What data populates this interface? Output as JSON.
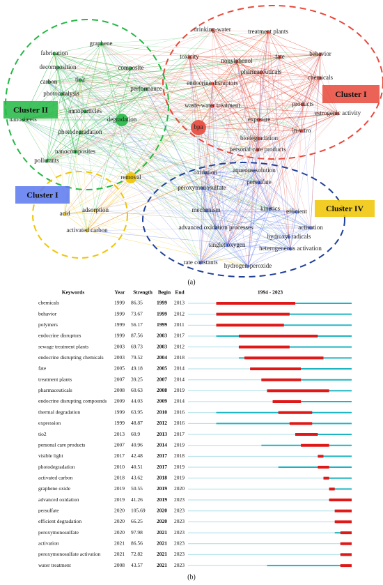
{
  "network": {
    "clusters": [
      {
        "label": "Cluster II",
        "color": "#22b844",
        "nodes": [
          "graphene",
          "fabrication",
          "decomposition",
          "composite",
          "carbon",
          "tio2",
          "performance",
          "photocatalysis",
          "nanoparticles",
          "nanosheets",
          "degradation",
          "photodegradation",
          "nanocomposites",
          "pollutants"
        ]
      },
      {
        "label": "Cluster I",
        "color": "#e8473a",
        "nodes": [
          "drinking-water",
          "treatment plants",
          "toxicity",
          "nonylphenol",
          "fate",
          "behavior",
          "pharmaceuticals",
          "chemicals",
          "endocrine disruptors",
          "waste-water treatment",
          "products",
          "estrogenic activity",
          "bpa",
          "exposure",
          "in-vitro",
          "biodegradation",
          "personal care products"
        ]
      },
      {
        "label": "Cluster I",
        "color": "#5b78ee",
        "nodes": [
          "oxidation",
          "aqueous-solution",
          "peroxymonosulfate",
          "persulfate",
          "kinetics",
          "efficient",
          "mechanism",
          "activation",
          "advanced oxidation processes",
          "hydroxyl radicals",
          "singlet oxygen",
          "heterogeneous activation",
          "rate constants",
          "hydrogen-peroxide"
        ]
      },
      {
        "label": "Cluster IV",
        "color": "#f0c400",
        "nodes": [
          "removal",
          "adsorption",
          "acid",
          "activated carbon"
        ]
      }
    ],
    "caption": "(a)"
  },
  "table": {
    "headers": [
      "Keywords",
      "Year",
      "Strength",
      "Begin",
      "End"
    ],
    "timeline": {
      "label": "1994 - 2023",
      "start": 1994,
      "end": 2023
    },
    "rows": [
      {
        "keyword": "chemicals",
        "year": 1999,
        "strength": 86.35,
        "begin": 1999,
        "end": 2013
      },
      {
        "keyword": "behavior",
        "year": 1999,
        "strength": 73.67,
        "begin": 1999,
        "end": 2012
      },
      {
        "keyword": "polymers",
        "year": 1999,
        "strength": 56.17,
        "begin": 1999,
        "end": 2011
      },
      {
        "keyword": "endocrine disruptors",
        "year": 1999,
        "strength": 87.56,
        "begin": 2003,
        "end": 2017
      },
      {
        "keyword": "sewage treatment plants",
        "year": 2003,
        "strength": 69.73,
        "begin": 2003,
        "end": 2012
      },
      {
        "keyword": "endocrine disrupting chemicals",
        "year": 2003,
        "strength": 79.52,
        "begin": 2004,
        "end": 2018
      },
      {
        "keyword": "fate",
        "year": 2005,
        "strength": 49.18,
        "begin": 2005,
        "end": 2014
      },
      {
        "keyword": "treatment plants",
        "year": 2007,
        "strength": 39.25,
        "begin": 2007,
        "end": 2014
      },
      {
        "keyword": "pharmaceuticals",
        "year": 2008,
        "strength": 60.63,
        "begin": 2008,
        "end": 2019
      },
      {
        "keyword": "endocrine disrupting compounds",
        "year": 2009,
        "strength": 44.03,
        "begin": 2009,
        "end": 2014
      },
      {
        "keyword": "thermal degradation",
        "year": 1999,
        "strength": 63.95,
        "begin": 2010,
        "end": 2016
      },
      {
        "keyword": "expression",
        "year": 1999,
        "strength": 48.87,
        "begin": 2012,
        "end": 2016
      },
      {
        "keyword": "tio2",
        "year": 2013,
        "strength": 60.9,
        "begin": 2013,
        "end": 2017
      },
      {
        "keyword": "personal care products",
        "year": 2007,
        "strength": 40.96,
        "begin": 2014,
        "end": 2019
      },
      {
        "keyword": "visible light",
        "year": 2017,
        "strength": 42.48,
        "begin": 2017,
        "end": 2018
      },
      {
        "keyword": "photodegradation",
        "year": 2010,
        "strength": 40.51,
        "begin": 2017,
        "end": 2019
      },
      {
        "keyword": "activated carbon",
        "year": 2018,
        "strength": 43.62,
        "begin": 2018,
        "end": 2019
      },
      {
        "keyword": "graphene oxide",
        "year": 2019,
        "strength": 50.55,
        "begin": 2019,
        "end": 2020
      },
      {
        "keyword": "advanced oxidation",
        "year": 2019,
        "strength": 41.26,
        "begin": 2019,
        "end": 2023
      },
      {
        "keyword": "persulfate",
        "year": 2020,
        "strength": 105.69,
        "begin": 2020,
        "end": 2023
      },
      {
        "keyword": "efficient degradation",
        "year": 2020,
        "strength": 66.25,
        "begin": 2020,
        "end": 2023
      },
      {
        "keyword": "peroxymonosulfate",
        "year": 2020,
        "strength": 97.98,
        "begin": 2021,
        "end": 2023
      },
      {
        "keyword": "activation",
        "year": 2021,
        "strength": 86.56,
        "begin": 2021,
        "end": 2023
      },
      {
        "keyword": "peroxymonosulfate activation",
        "year": 2021,
        "strength": 72.82,
        "begin": 2021,
        "end": 2023
      },
      {
        "keyword": "water treatment",
        "year": 2008,
        "strength": 43.57,
        "begin": 2021,
        "end": 2023
      }
    ],
    "caption": "(b)"
  }
}
